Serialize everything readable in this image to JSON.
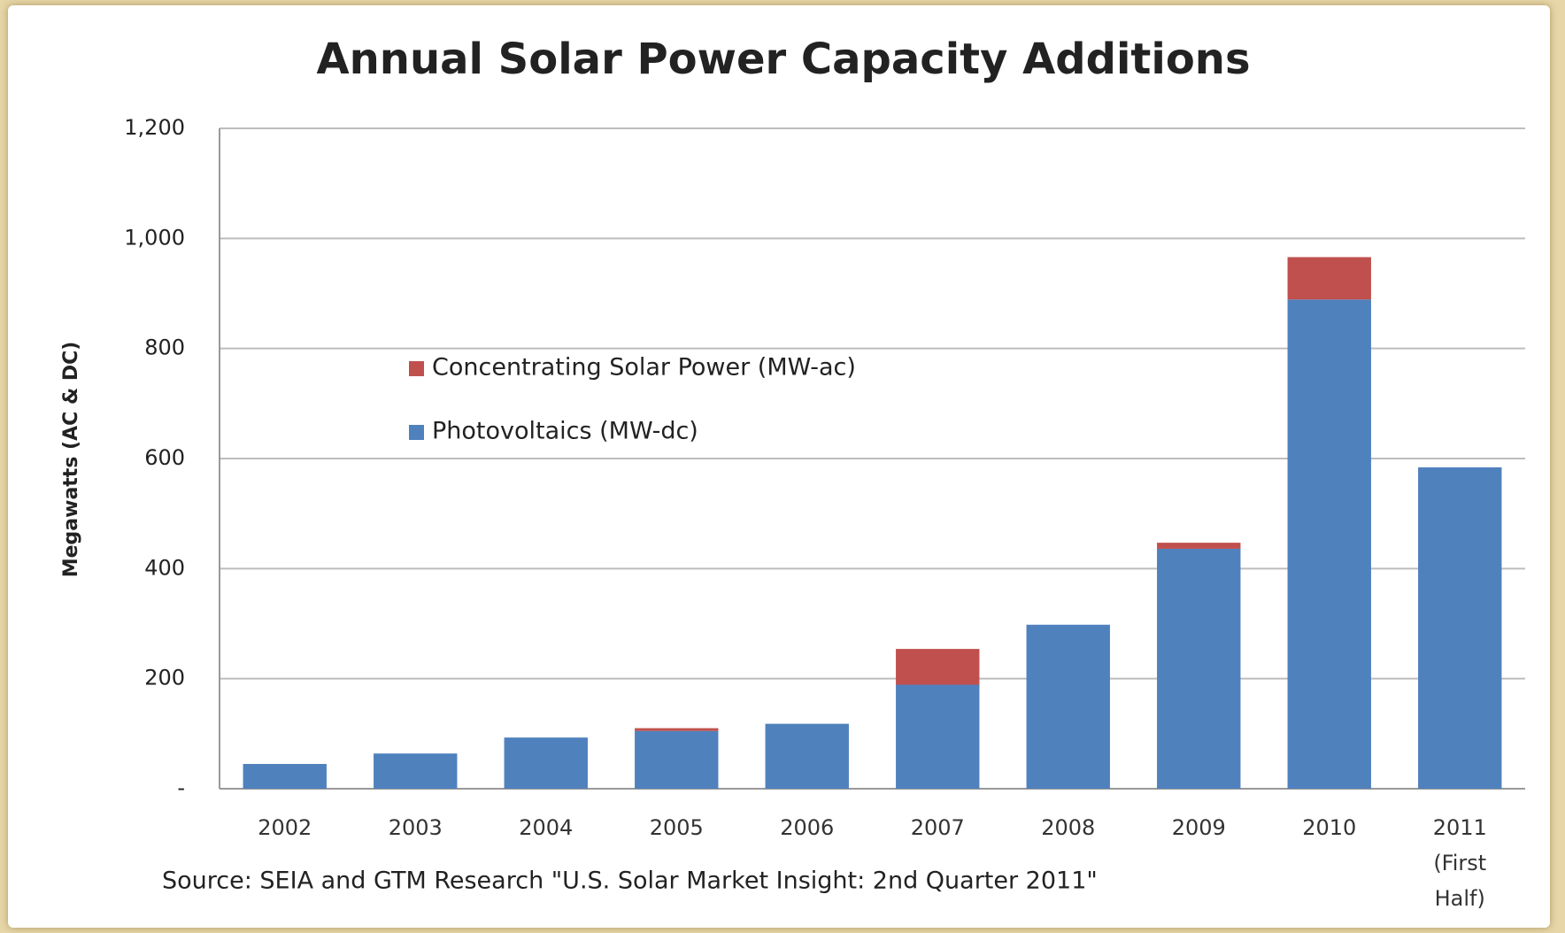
{
  "chart_data": {
    "type": "stacked_bar",
    "title": "Annual Solar Power Capacity Additions",
    "y_label": "Megawatts (AC & DC)",
    "annotation": "Source: SEIA and GTM Research \"U.S. Solar Market Insight: 2nd Quarter 2011\"",
    "categories": [
      "2002",
      "2003",
      "2004",
      "2005",
      "2006",
      "2007",
      "2008",
      "2009",
      "2010",
      "2011 (First Half)"
    ],
    "series": [
      {
        "name": "Concentrating Solar Power (MW-ac)",
        "color": "#c0504d",
        "values": [
          0,
          0,
          0,
          5,
          0,
          65,
          0,
          11,
          77,
          0
        ]
      },
      {
        "name": "Photovoltaics (MW-dc)",
        "color": "#4f81bd",
        "values": [
          45,
          64,
          93,
          105,
          118,
          189,
          298,
          436,
          889,
          584
        ]
      }
    ],
    "ylim": [
      0,
      1200
    ],
    "yticks": [
      {
        "value": 0,
        "label": "-"
      },
      200,
      400,
      600,
      800,
      {
        "value": 1000,
        "label": "1,000"
      },
      {
        "value": 1200,
        "label": "1,200"
      }
    ],
    "grid": true
  }
}
